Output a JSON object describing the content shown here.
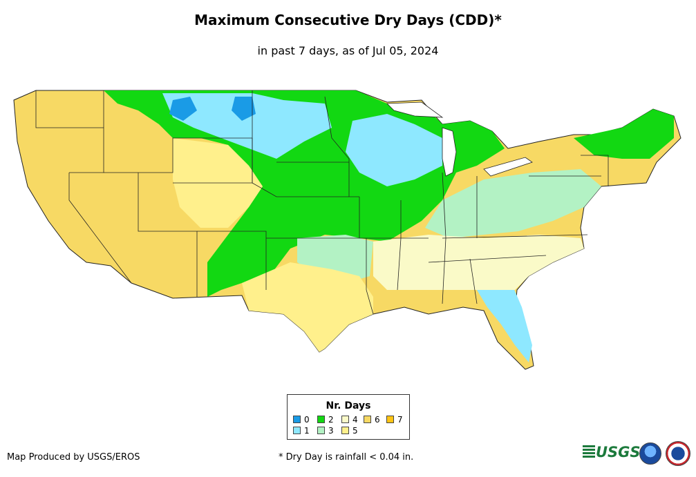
{
  "title": "Maximum Consecutive Dry Days (CDD)*",
  "subtitle": "in past 7 days, as of Jul 05, 2024",
  "legend": {
    "title": "Nr. Days",
    "items": [
      {
        "label": "0",
        "color": "#1a9be6"
      },
      {
        "label": "1",
        "color": "#8ee8ff"
      },
      {
        "label": "2",
        "color": "#12d812"
      },
      {
        "label": "3",
        "color": "#b3f2c4"
      },
      {
        "label": "4",
        "color": "#fafac8"
      },
      {
        "label": "5",
        "color": "#fff08c"
      },
      {
        "label": "6",
        "color": "#f7d964"
      },
      {
        "label": "7",
        "color": "#ffc414"
      }
    ]
  },
  "footer": {
    "credit": "Map Produced by USGS/EROS",
    "footnote": "* Dry Day is rainfall < 0.04 in."
  },
  "logos": {
    "usgs": "USGS",
    "noaa": "noaa-logo",
    "nws": "nws-logo"
  }
}
